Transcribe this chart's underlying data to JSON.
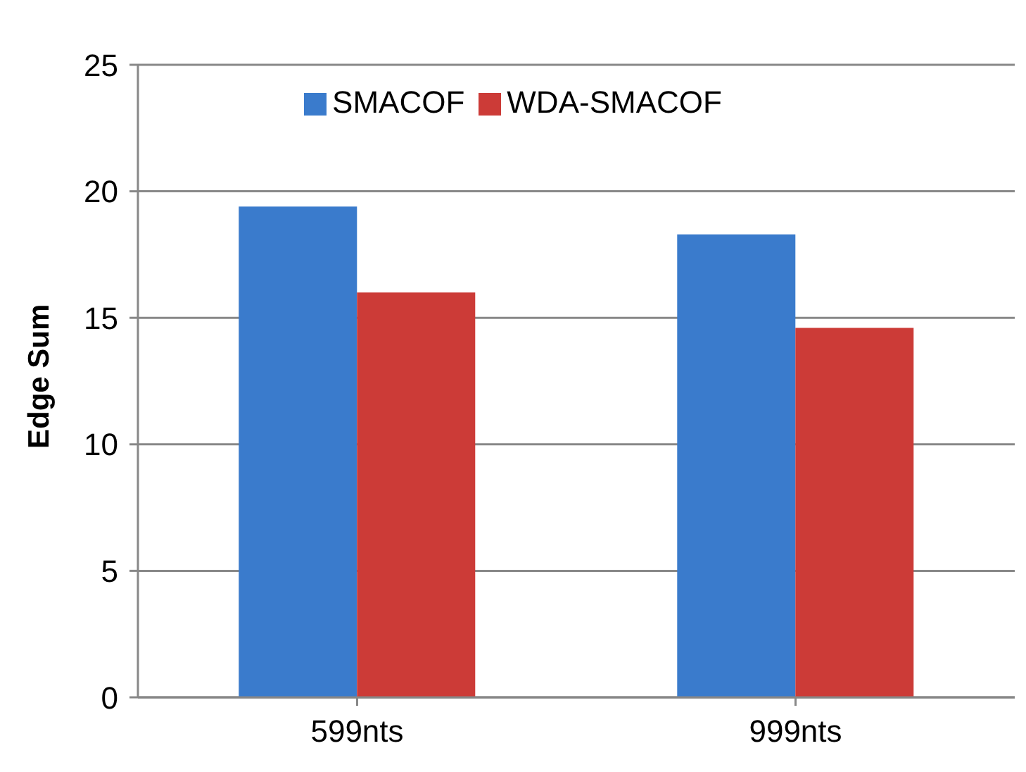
{
  "chart_data": {
    "type": "bar",
    "ylabel": "Edge Sum",
    "categories": [
      "599nts",
      "999nts"
    ],
    "series": [
      {
        "name": "SMACOF",
        "color": "#3a7bcc",
        "values": [
          19.4,
          18.3
        ]
      },
      {
        "name": "WDA-SMACOF",
        "color": "#cc3b37",
        "values": [
          16.0,
          14.6
        ]
      }
    ],
    "ylim": [
      0,
      25
    ],
    "yticks": [
      0,
      5,
      10,
      15,
      20,
      25
    ],
    "grid": "y",
    "legend": "top"
  }
}
